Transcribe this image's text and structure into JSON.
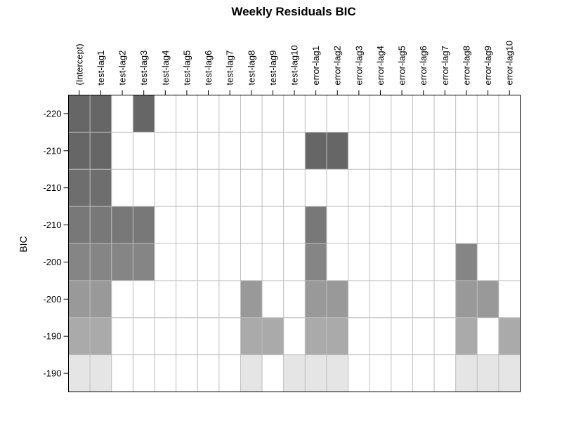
{
  "chart_data": {
    "type": "heatmap",
    "title": "Weekly Residuals BIC",
    "ylabel": "BIC",
    "xlabel": "",
    "columns": [
      "(Intercept)",
      "test-lag1",
      "test-lag2",
      "test-lag3",
      "test-lag4",
      "test-lag5",
      "test-lag6",
      "test-lag7",
      "test-lag8",
      "test-lag9",
      "test-lag10",
      "error-lag1",
      "error-lag2",
      "error-lag3",
      "error-lag4",
      "error-lag5",
      "error-lag6",
      "error-lag7",
      "error-lag8",
      "error-lag9",
      "error-lag10"
    ],
    "row_labels": [
      "-220",
      "-210",
      "-210",
      "-210",
      "-200",
      "-200",
      "-190",
      "-190"
    ],
    "row_shades": [
      "#666666",
      "#666666",
      "#6e6e6e",
      "#787878",
      "#858585",
      "#999999",
      "#aaaaaa",
      "#e5e5e5"
    ],
    "included": [
      [
        "(Intercept)",
        "test-lag1",
        "test-lag3"
      ],
      [
        "(Intercept)",
        "test-lag1",
        "error-lag1",
        "error-lag2"
      ],
      [
        "(Intercept)",
        "test-lag1"
      ],
      [
        "(Intercept)",
        "test-lag1",
        "test-lag2",
        "test-lag3",
        "error-lag1"
      ],
      [
        "(Intercept)",
        "test-lag1",
        "test-lag2",
        "test-lag3",
        "error-lag1",
        "error-lag8"
      ],
      [
        "(Intercept)",
        "test-lag1",
        "test-lag8",
        "error-lag1",
        "error-lag2",
        "error-lag8",
        "error-lag9"
      ],
      [
        "(Intercept)",
        "test-lag1",
        "test-lag8",
        "test-lag9",
        "error-lag1",
        "error-lag2",
        "error-lag8",
        "error-lag10"
      ],
      [
        "(Intercept)",
        "test-lag1",
        "test-lag8",
        "test-lag10",
        "error-lag1",
        "error-lag2",
        "error-lag8",
        "error-lag9",
        "error-lag10"
      ]
    ],
    "empty_color": "#ffffff",
    "grid": true,
    "grid_color": "#bebebe"
  }
}
